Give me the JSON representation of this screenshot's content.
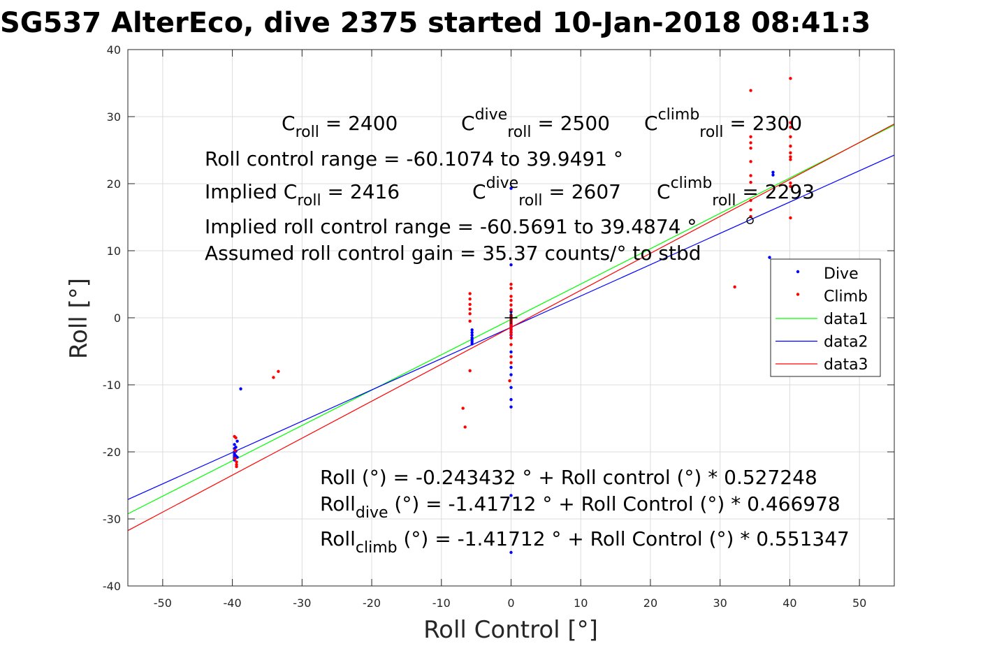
{
  "chart_data": {
    "type": "scatter",
    "title": "SG537 AlterEco, dive 2375 started 10-Jan-2018 08:41:3",
    "xlabel": "Roll Control [°]",
    "ylabel": "Roll [°]",
    "xlim": [
      -55,
      55
    ],
    "ylim": [
      -40,
      40
    ],
    "xticks": [
      "-50",
      "-40",
      "-30",
      "-20",
      "-10",
      "0",
      "10",
      "20",
      "30",
      "40",
      "50"
    ],
    "yticks": [
      "-40",
      "-30",
      "-20",
      "-10",
      "0",
      "10",
      "20",
      "30",
      "40"
    ],
    "grid": true,
    "legend_position": "right",
    "annotations": {
      "c_roll": {
        "base": "C",
        "sub": "roll",
        "rest": " = 2400"
      },
      "c_roll_dive": {
        "base": "C",
        "sup": "dive",
        "sub": "roll",
        "rest": " = 2500"
      },
      "c_roll_climb": {
        "base": "C",
        "sup": "climb",
        "sub": "roll",
        "rest": " = 2300"
      },
      "roll_control_range": "Roll control range = -60.1074 to 39.9491 °",
      "implied_c_roll": {
        "base": "Implied C",
        "sub": "roll",
        "rest": " = 2416"
      },
      "implied_c_roll_dive": {
        "base": "C",
        "sup": "dive",
        "sub": "roll",
        "rest": " = 2607"
      },
      "implied_c_roll_climb": {
        "base": "C",
        "sup": "climb",
        "sub": "roll",
        "rest": " = 2293"
      },
      "implied_range": "Implied roll control range = -60.5691 to 39.4874 °",
      "gain": "Assumed roll control gain = 35.37 counts/° to stbd",
      "eq_all": "Roll (°) = -0.243432 ° + Roll control (°) * 0.527248",
      "eq_dive": {
        "base": "Roll",
        "sub": "dive",
        "rest": " (°) = -1.41712 ° + Roll Control (°) * 0.466978"
      },
      "eq_climb": {
        "base": "Roll",
        "sub": "climb",
        "rest": " (°) = -1.41712 ° + Roll Control (°) * 0.551347"
      }
    },
    "series": [
      {
        "name": "Dive",
        "kind": "points",
        "color": "#0000ff",
        "points": [
          [
            -39.7,
            -18.9
          ],
          [
            -39.7,
            -19.5
          ],
          [
            -39.7,
            -20.0
          ],
          [
            -39.7,
            -20.3
          ],
          [
            -39.7,
            -20.6
          ],
          [
            -39.7,
            -20.9
          ],
          [
            -39.7,
            -21.2
          ],
          [
            -39.5,
            -19.3
          ],
          [
            -39.5,
            -19.9
          ],
          [
            -39.5,
            -20.6
          ],
          [
            -39.3,
            -18.4
          ],
          [
            -39.3,
            -20.8
          ],
          [
            -38.8,
            -10.6
          ],
          [
            -5.6,
            -1.8
          ],
          [
            -5.6,
            -2.2
          ],
          [
            -5.6,
            -2.6
          ],
          [
            -5.6,
            -3.0
          ],
          [
            -5.6,
            -3.3
          ],
          [
            -5.6,
            -3.6
          ],
          [
            -5.6,
            -3.9
          ],
          [
            0,
            19.3
          ],
          [
            0,
            7.9
          ],
          [
            0,
            0.9
          ],
          [
            0,
            0.4
          ],
          [
            0,
            0.1
          ],
          [
            0,
            -0.3
          ],
          [
            0,
            -0.6
          ],
          [
            0,
            -0.9
          ],
          [
            0,
            -1.2
          ],
          [
            0,
            -1.5
          ],
          [
            0,
            -1.8
          ],
          [
            0,
            -2.2
          ],
          [
            0,
            -2.6
          ],
          [
            0,
            -3.0
          ],
          [
            0,
            -5.1
          ],
          [
            0,
            -7.4
          ],
          [
            0,
            -8.5
          ],
          [
            0,
            -10.4
          ],
          [
            0,
            -12.2
          ],
          [
            0,
            -13.3
          ],
          [
            0,
            -26.5
          ],
          [
            0,
            -35.0
          ],
          [
            37.1,
            9.0
          ],
          [
            37.6,
            21.3
          ],
          [
            37.6,
            21.7
          ]
        ]
      },
      {
        "name": "Climb",
        "kind": "points",
        "color": "#ff0000",
        "points": [
          [
            -39.7,
            -17.7
          ],
          [
            -39.5,
            -17.9
          ],
          [
            -39.6,
            -19.8
          ],
          [
            -39.6,
            -21.0
          ],
          [
            -39.4,
            -21.5
          ],
          [
            -39.4,
            -21.9
          ],
          [
            -39.4,
            -22.2
          ],
          [
            -34.1,
            -8.9
          ],
          [
            -33.4,
            -8.0
          ],
          [
            -6.9,
            -13.5
          ],
          [
            -6.6,
            -16.3
          ],
          [
            -5.9,
            3.6
          ],
          [
            -5.9,
            2.8
          ],
          [
            -5.9,
            2.0
          ],
          [
            -5.9,
            1.3
          ],
          [
            -5.9,
            0.6
          ],
          [
            -5.9,
            -0.5
          ],
          [
            -5.9,
            -7.9
          ],
          [
            -0.2,
            -9.4
          ],
          [
            0,
            5.0
          ],
          [
            0,
            4.4
          ],
          [
            0,
            3.2
          ],
          [
            0,
            2.6
          ],
          [
            0,
            1.9
          ],
          [
            0,
            1.2
          ],
          [
            0,
            0.3
          ],
          [
            0,
            -0.1
          ],
          [
            0,
            -0.4
          ],
          [
            0,
            -0.7
          ],
          [
            0,
            -1.0
          ],
          [
            0,
            -1.4
          ],
          [
            0,
            -1.7
          ],
          [
            0,
            -2.1
          ],
          [
            0,
            -2.5
          ],
          [
            0,
            -3.0
          ],
          [
            0,
            -4.0
          ],
          [
            0,
            -5.8
          ],
          [
            0,
            -6.7
          ],
          [
            32.1,
            4.6
          ],
          [
            34.4,
            33.9
          ],
          [
            34.4,
            27.0
          ],
          [
            34.4,
            26.1
          ],
          [
            34.4,
            25.3
          ],
          [
            34.4,
            23.3
          ],
          [
            34.4,
            21.2
          ],
          [
            34.4,
            20.2
          ],
          [
            34.4,
            17.5
          ],
          [
            34.4,
            16.1
          ],
          [
            34.4,
            15.1
          ],
          [
            40.1,
            35.7
          ],
          [
            40.1,
            29.1
          ],
          [
            40.1,
            28.4
          ],
          [
            40.1,
            27.0
          ],
          [
            40.1,
            25.6
          ],
          [
            40.1,
            24.6
          ],
          [
            40.1,
            24.0
          ],
          [
            40.1,
            23.6
          ],
          [
            40.1,
            20.1
          ],
          [
            40.1,
            19.6
          ],
          [
            40.1,
            14.9
          ]
        ]
      },
      {
        "name": "data1",
        "kind": "line",
        "color": "#00ff00",
        "intercept": -0.243432,
        "slope": 0.527248
      },
      {
        "name": "data2",
        "kind": "line",
        "color": "#0000ff",
        "intercept": -1.41712,
        "slope": 0.466978
      },
      {
        "name": "data3",
        "kind": "line",
        "color": "#ff0000",
        "intercept": -1.41712,
        "slope": 0.551347
      }
    ],
    "markers": [
      {
        "kind": "plus",
        "x": 0,
        "y": 0,
        "color": "#000000"
      },
      {
        "kind": "circle",
        "x": 34.3,
        "y": 14.5,
        "color": "#000000"
      }
    ]
  }
}
